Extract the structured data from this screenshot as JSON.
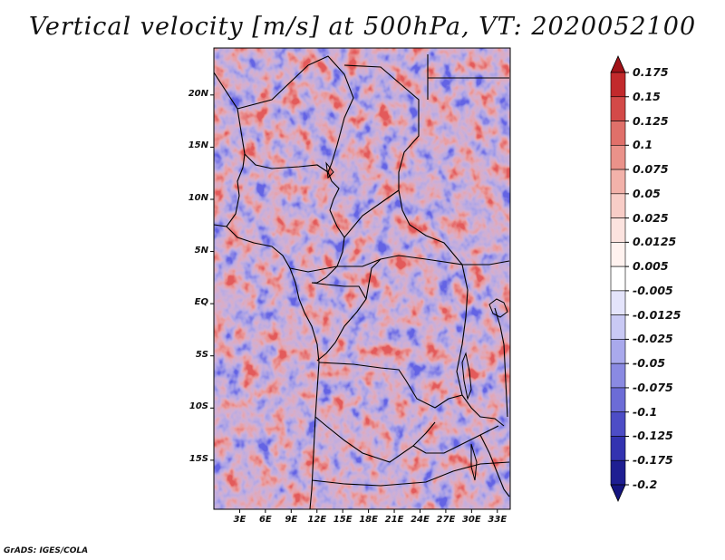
{
  "title": "Vertical velocity [m/s] at 500hPa, VT: 2020052100",
  "credit": "GrADS: IGES/COLA",
  "map": {
    "lat_ticks": [
      "20N",
      "15N",
      "10N",
      "5N",
      "EQ",
      "5S",
      "10S",
      "15S"
    ],
    "lat_values": [
      20,
      15,
      10,
      5,
      0,
      -5,
      -10,
      -15
    ],
    "lon_ticks": [
      "3E",
      "6E",
      "9E",
      "12E",
      "15E",
      "18E",
      "21E",
      "24E",
      "27E",
      "30E",
      "33E"
    ],
    "lon_values": [
      3,
      6,
      9,
      12,
      15,
      18,
      21,
      24,
      27,
      30,
      33
    ],
    "lon_range": [
      0,
      34.5
    ],
    "lat_range": [
      -19.7,
      24.5
    ]
  },
  "colorbar": {
    "labels": [
      "0.175",
      "0.15",
      "0.125",
      "0.1",
      "0.075",
      "0.05",
      "0.025",
      "0.0125",
      "0.005",
      "-0.005",
      "-0.0125",
      "-0.025",
      "-0.05",
      "-0.075",
      "-0.1",
      "-0.125",
      "-0.175",
      "-0.2"
    ],
    "colors": [
      "#a11218",
      "#c22a2c",
      "#d34a48",
      "#e0706a",
      "#ea928a",
      "#f2b2aa",
      "#f8cdc7",
      "#fce3df",
      "#fff2ef",
      "#ffffff",
      "#e4e4fb",
      "#c9c9f4",
      "#a9a9ec",
      "#8a8ae2",
      "#6c6cd6",
      "#4d4dc6",
      "#3333b0",
      "#1e1e92",
      "#151580"
    ]
  },
  "colors": {
    "positive": "#e05050",
    "negative": "#5a5ae0",
    "border": "#000000"
  }
}
